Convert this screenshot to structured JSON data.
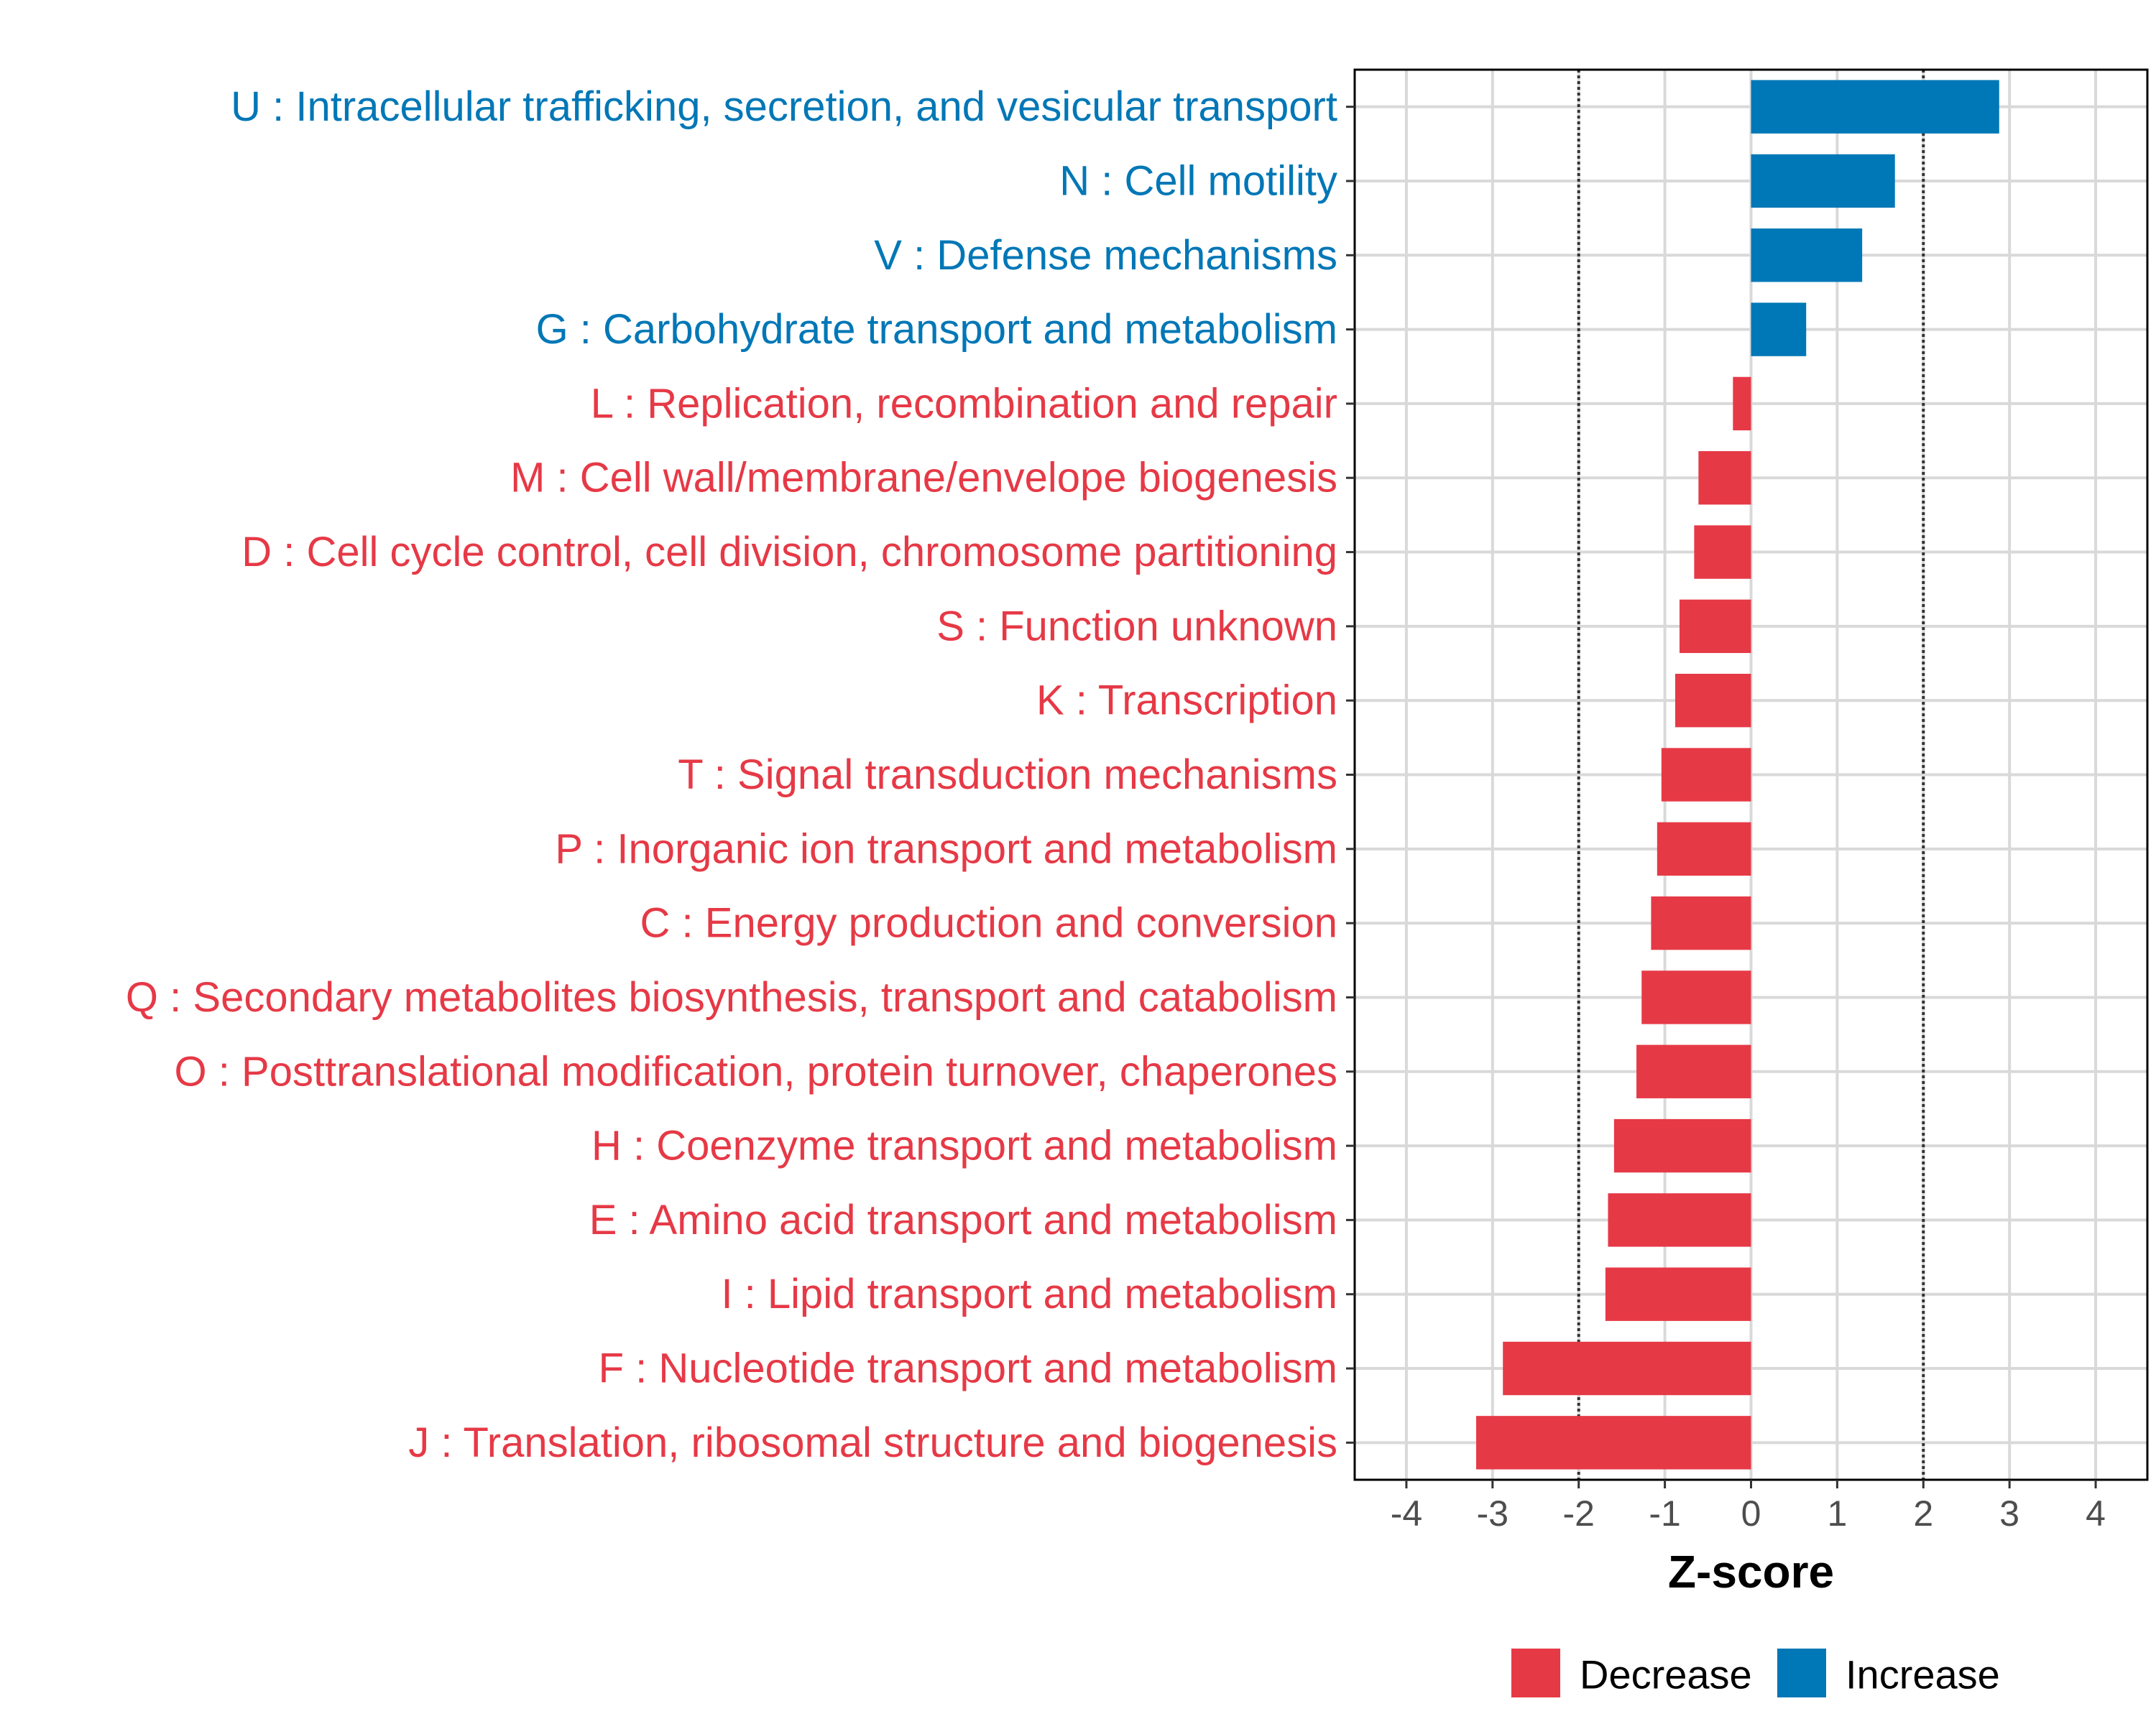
{
  "chart_data": {
    "type": "bar",
    "orientation": "horizontal",
    "xlabel": "Z-score",
    "ylabel": "",
    "xlim": [
      -4.6,
      4.6
    ],
    "xticks": [
      -4,
      -3,
      -2,
      -1,
      0,
      1,
      2,
      3,
      4
    ],
    "tick_labels": [
      "-4",
      "-3",
      "-2",
      "-1",
      "0",
      "1",
      "2",
      "3",
      "4"
    ],
    "reference_lines": [
      -2,
      2
    ],
    "grid": true,
    "categories": [
      "U : Intracellular trafficking, secretion, and vesicular transport",
      "N : Cell motility",
      "V : Defense mechanisms",
      "G : Carbohydrate transport and metabolism",
      "L : Replication, recombination and repair",
      "M : Cell wall/membrane/envelope biogenesis",
      "D : Cell cycle control, cell division, chromosome partitioning",
      "S : Function unknown",
      "K : Transcription",
      "T : Signal transduction mechanisms",
      "P : Inorganic ion transport and metabolism",
      "C : Energy production and conversion",
      "Q : Secondary metabolites biosynthesis, transport and catabolism",
      "O : Posttranslational modification, protein turnover, chaperones",
      "H : Coenzyme transport and metabolism",
      "E : Amino acid transport and metabolism",
      "I : Lipid transport and metabolism",
      "F : Nucleotide transport and metabolism",
      "J : Translation, ribosomal structure and biogenesis"
    ],
    "values": [
      2.88,
      1.67,
      1.29,
      0.64,
      -0.21,
      -0.61,
      -0.66,
      -0.83,
      -0.88,
      -1.04,
      -1.09,
      -1.16,
      -1.27,
      -1.33,
      -1.59,
      -1.66,
      -1.69,
      -2.88,
      -3.19
    ],
    "groups": [
      "Increase",
      "Increase",
      "Increase",
      "Increase",
      "Decrease",
      "Decrease",
      "Decrease",
      "Decrease",
      "Decrease",
      "Decrease",
      "Decrease",
      "Decrease",
      "Decrease",
      "Decrease",
      "Decrease",
      "Decrease",
      "Decrease",
      "Decrease",
      "Decrease"
    ],
    "legend": {
      "placement": "bottom",
      "entries": [
        {
          "name": "Decrease",
          "color": "#E63946"
        },
        {
          "name": "Increase",
          "color": "#0077B6"
        }
      ]
    },
    "colors": {
      "Decrease": "#E63946",
      "Increase": "#0077B6"
    }
  }
}
